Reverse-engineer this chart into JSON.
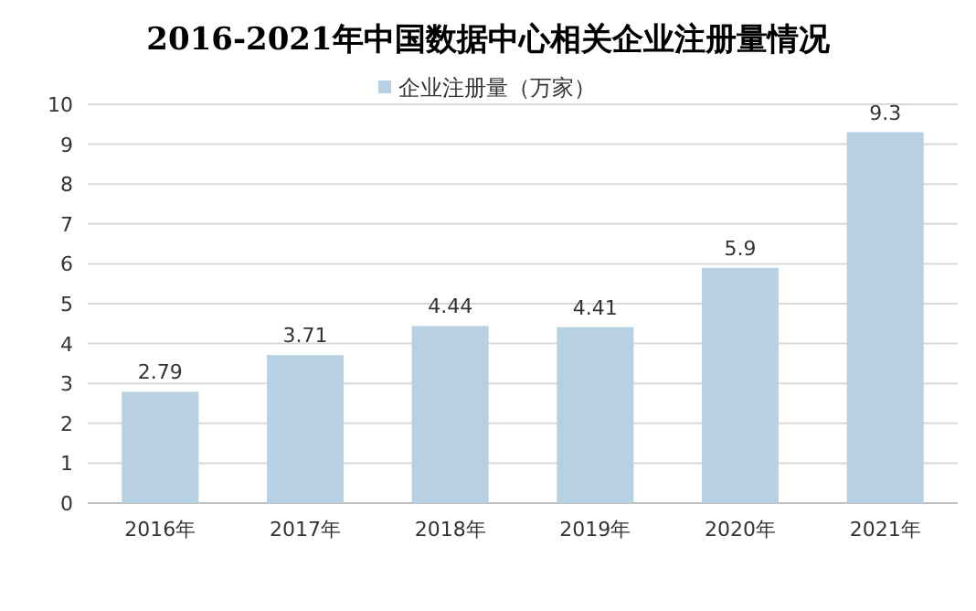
{
  "chart_data": {
    "type": "bar",
    "title": "2016-2021年中国数据中心相关企业注册量情况",
    "categories": [
      "2016年",
      "2017年",
      "2018年",
      "2019年",
      "2020年",
      "2021年"
    ],
    "series": [
      {
        "name": "企业注册量（万家）",
        "color": "#b7d0e2",
        "values": [
          2.79,
          3.71,
          4.44,
          4.41,
          5.9,
          9.3
        ]
      }
    ],
    "ylim": [
      0,
      10
    ],
    "yticks": [
      0,
      1,
      2,
      3,
      4,
      5,
      6,
      7,
      8,
      9,
      10
    ],
    "grid": "y",
    "legend": "top",
    "data_labels": true
  }
}
